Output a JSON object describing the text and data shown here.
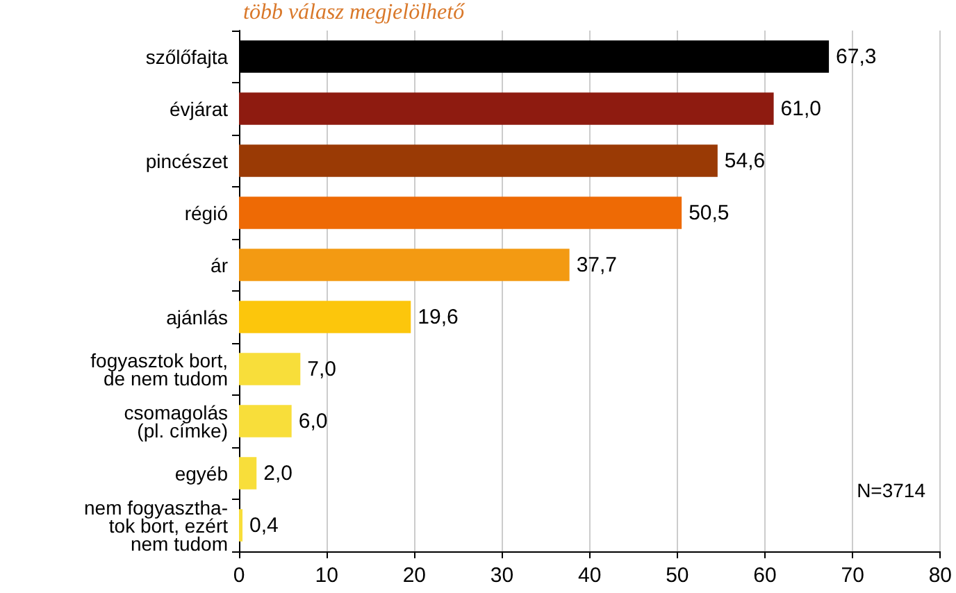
{
  "chart_data": {
    "type": "bar",
    "orientation": "horizontal",
    "subtitle": "több válasz megjelölhető",
    "categories": [
      "szőlőfajta",
      "évjárat",
      "pincészet",
      "régió",
      "ár",
      "ajánlás",
      "fogyasztok bort,\nde nem tudom",
      "csomagolás\n(pl. címke)",
      "egyéb",
      "nem fogyasztha-\ntok bort, ezért\nnem tudom"
    ],
    "values": [
      67.3,
      61.0,
      54.6,
      50.5,
      37.7,
      19.6,
      7.0,
      6.0,
      2.0,
      0.4
    ],
    "colors": [
      "#000000",
      "#8e1b10",
      "#9a3a05",
      "#ee6a05",
      "#f39a12",
      "#fcc60c",
      "#f8de3a",
      "#f8de3a",
      "#f8de3a",
      "#f8de3a"
    ],
    "value_labels": [
      "67,3",
      "61,0",
      "54,6",
      "50,5",
      "37,7",
      "19,6",
      "7,0",
      "6,0",
      "2,0",
      "0,4"
    ],
    "xlim": [
      0,
      80
    ],
    "xticks": [
      0,
      10,
      20,
      30,
      40,
      50,
      60,
      70,
      80
    ],
    "grid": "x",
    "annotations": [
      "N=3714"
    ]
  }
}
